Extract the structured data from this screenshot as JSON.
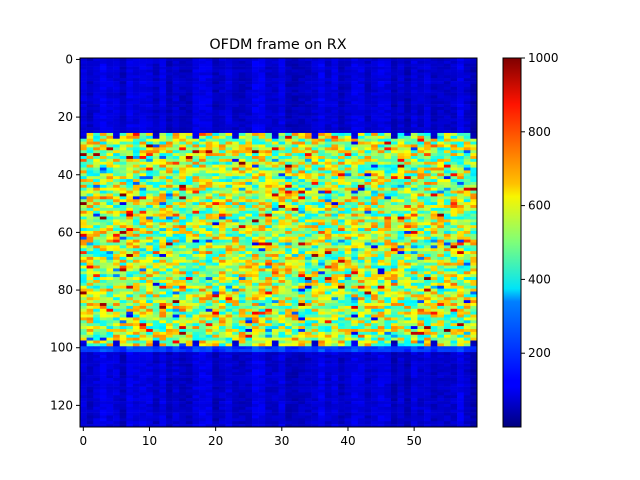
{
  "chart_data": {
    "type": "heatmap",
    "title": "OFDM frame on RX",
    "xlabel": "",
    "ylabel": "",
    "colormap": "jet",
    "n_cols": 60,
    "n_rows": 128,
    "xlim": [
      -0.5,
      59.5
    ],
    "ylim": [
      127.5,
      -0.5
    ],
    "x_ticks": [
      0,
      10,
      20,
      30,
      40,
      50
    ],
    "y_ticks": [
      0,
      20,
      40,
      60,
      80,
      100,
      120
    ],
    "colorbar": {
      "min": 0,
      "max": 1000,
      "ticks": [
        200,
        400,
        600,
        800,
        1000
      ]
    },
    "regions": {
      "guard_top_rows": [
        0,
        25
      ],
      "data_rows": [
        26,
        99
      ],
      "guard_bottom_rows": [
        100,
        127
      ],
      "guard_level": 80,
      "data_level_mean": 550,
      "data_level_spread": 200,
      "pilot_columns": [
        0,
        5,
        11,
        17,
        23,
        29,
        35,
        41,
        47,
        53,
        59
      ]
    },
    "grid": false,
    "legend": "colorbar-right"
  }
}
